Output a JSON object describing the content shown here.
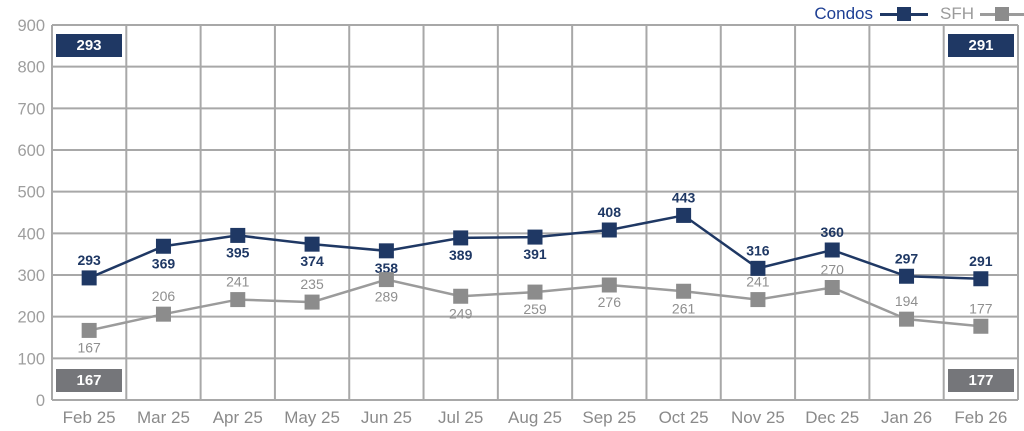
{
  "legend": {
    "items": [
      {
        "name": "condos",
        "label": "Condos",
        "marker_color": "#1f3864",
        "line_color": "#1f3864",
        "text_color": "#1d3e93"
      },
      {
        "name": "sfh",
        "label": "SFH",
        "marker_color": "#8c8c8c",
        "line_color": "#9b9b9b",
        "text_color": "#9b9b9b"
      }
    ]
  },
  "callouts": {
    "top_left": "293",
    "top_right": "291",
    "bottom_left": "167",
    "bottom_right": "177"
  },
  "colors": {
    "condos": "#1f3864",
    "condos_badge": "#1f3864",
    "sfh_marker": "#8c8c8c",
    "sfh_line": "#9b9b9b",
    "sfh_badge": "#75767a",
    "grid": "#a8a8a8",
    "ytick_text": "#9e9e9e",
    "xtick_text": "#8a8a8a",
    "background": "#ffffff"
  },
  "chart_data": {
    "type": "line",
    "title": "",
    "xlabel": "",
    "ylabel": "",
    "categories": [
      "Feb 25",
      "Mar 25",
      "Apr 25",
      "May 25",
      "Jun 25",
      "Jul 25",
      "Aug 25",
      "Sep 25",
      "Oct 25",
      "Nov 25",
      "Dec 25",
      "Jan 26",
      "Feb 26"
    ],
    "series": [
      {
        "name": "Condos",
        "values": [
          293,
          369,
          395,
          374,
          358,
          389,
          391,
          408,
          443,
          316,
          360,
          297,
          291
        ],
        "color": "#1f3864",
        "line_color": "#1f3864",
        "label_color": "#1f3864",
        "label_bold": true,
        "label_positions": [
          "above",
          "below",
          "below",
          "below",
          "below",
          "below",
          "below",
          "above",
          "above",
          "above",
          "above",
          "above",
          "above"
        ]
      },
      {
        "name": "SFH",
        "values": [
          167,
          206,
          241,
          235,
          289,
          249,
          259,
          276,
          261,
          241,
          270,
          194,
          177
        ],
        "color": "#8c8c8c",
        "line_color": "#9b9b9b",
        "label_color": "#8f8f8f",
        "label_bold": false,
        "label_positions": [
          "below",
          "above",
          "above",
          "above",
          "below",
          "below",
          "below",
          "below",
          "below",
          "above",
          "above",
          "above",
          "above"
        ]
      }
    ],
    "ylim": [
      0,
      900
    ],
    "ytick_step": 100,
    "grid": true,
    "legend_position": "top-right",
    "marker": "square",
    "first_last_callouts": true
  }
}
